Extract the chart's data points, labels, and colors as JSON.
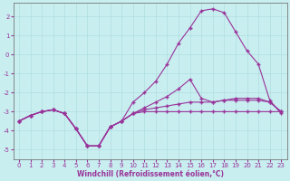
{
  "xlabel": "Windchill (Refroidissement éolien,°C)",
  "background_color": "#c8eef0",
  "grid_color": "#b0dde0",
  "line_color": "#993399",
  "xlim": [
    -0.5,
    23.5
  ],
  "ylim": [
    -5.5,
    2.7
  ],
  "xticks": [
    0,
    1,
    2,
    3,
    4,
    5,
    6,
    7,
    8,
    9,
    10,
    11,
    12,
    13,
    14,
    15,
    16,
    17,
    18,
    19,
    20,
    21,
    22,
    23
  ],
  "yticks": [
    -5,
    -4,
    -3,
    -2,
    -1,
    0,
    1,
    2
  ],
  "line1_y": [
    -3.5,
    -3.2,
    -3.0,
    -2.9,
    -3.1,
    -3.9,
    -4.8,
    -4.8,
    -3.8,
    -3.5,
    -3.1,
    -3.0,
    -3.0,
    -3.0,
    -3.0,
    -3.0,
    -3.0,
    -3.0,
    -3.0,
    -3.0,
    -3.0,
    -3.0,
    -3.0,
    -3.0
  ],
  "line2_y": [
    -3.5,
    -3.2,
    -3.0,
    -2.9,
    -3.1,
    -3.9,
    -4.8,
    -4.8,
    -3.8,
    -3.5,
    -3.1,
    -2.9,
    -2.8,
    -2.7,
    -2.6,
    -2.5,
    -2.5,
    -2.5,
    -2.4,
    -2.4,
    -2.4,
    -2.4,
    -2.5,
    -3.0
  ],
  "line3_y": [
    -3.5,
    -3.2,
    -3.0,
    -2.9,
    -3.1,
    -3.9,
    -4.8,
    -4.8,
    -3.8,
    -3.5,
    -3.1,
    -2.8,
    -2.5,
    -2.2,
    -1.8,
    -1.3,
    -2.3,
    -2.5,
    -2.4,
    -2.3,
    -2.3,
    -2.3,
    -2.5,
    -3.0
  ],
  "line4_y": [
    -3.5,
    -3.2,
    -3.0,
    -2.9,
    -3.1,
    -3.9,
    -4.8,
    -4.8,
    -3.8,
    -3.5,
    -2.5,
    -2.0,
    -1.4,
    -0.5,
    0.6,
    1.4,
    2.3,
    2.4,
    2.2,
    1.2,
    0.2,
    -0.5,
    -2.4,
    -3.1
  ],
  "marker": "+",
  "markersize": 3,
  "linewidth": 0.8
}
